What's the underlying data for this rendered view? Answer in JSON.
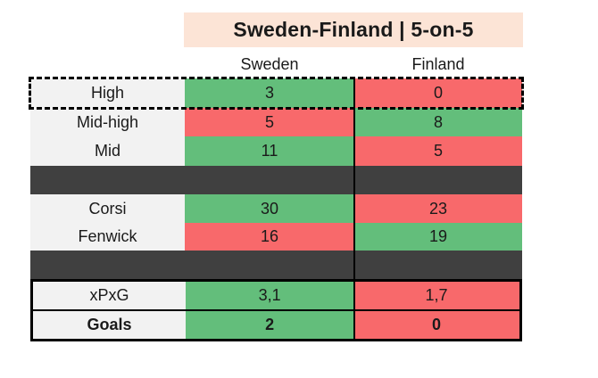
{
  "header": {
    "title": "Sweden-Finland | 5-on-5"
  },
  "columns": {
    "sweden": "Sweden",
    "finland": "Finland"
  },
  "colors": {
    "positive_green": "#63BE7B",
    "negative_red": "#F8696B",
    "label_bg": "#F2F2F2",
    "separator_bar": "#404040",
    "title_bg": "#FCE4D6",
    "border": "#000000"
  },
  "chart_data": {
    "type": "table",
    "title": "Sweden-Finland | 5-on-5",
    "columns": [
      "Sweden",
      "Finland"
    ],
    "rows": [
      {
        "label": "High",
        "sweden": "3",
        "finland": "0",
        "sweden_fill": "green",
        "finland_fill": "red",
        "highlight": "dashed-border"
      },
      {
        "label": "Mid-high",
        "sweden": "5",
        "finland": "8",
        "sweden_fill": "red",
        "finland_fill": "green"
      },
      {
        "label": "Mid",
        "sweden": "11",
        "finland": "5",
        "sweden_fill": "green",
        "finland_fill": "red"
      },
      {
        "label": "Corsi",
        "sweden": "30",
        "finland": "23",
        "sweden_fill": "green",
        "finland_fill": "red"
      },
      {
        "label": "Fenwick",
        "sweden": "16",
        "finland": "19",
        "sweden_fill": "red",
        "finland_fill": "green"
      },
      {
        "label": "xPxG",
        "sweden": "3,1",
        "finland": "1,7",
        "sweden_fill": "green",
        "finland_fill": "red"
      },
      {
        "label": "Goals",
        "sweden": "2",
        "finland": "0",
        "sweden_fill": "green",
        "finland_fill": "red",
        "bold": "true"
      }
    ],
    "layout_notes": "rows High/Mid-high/Mid, dark separator, Corsi/Fenwick, dark separator, xPxG/Goals block with solid border; green=better, red=worse"
  }
}
